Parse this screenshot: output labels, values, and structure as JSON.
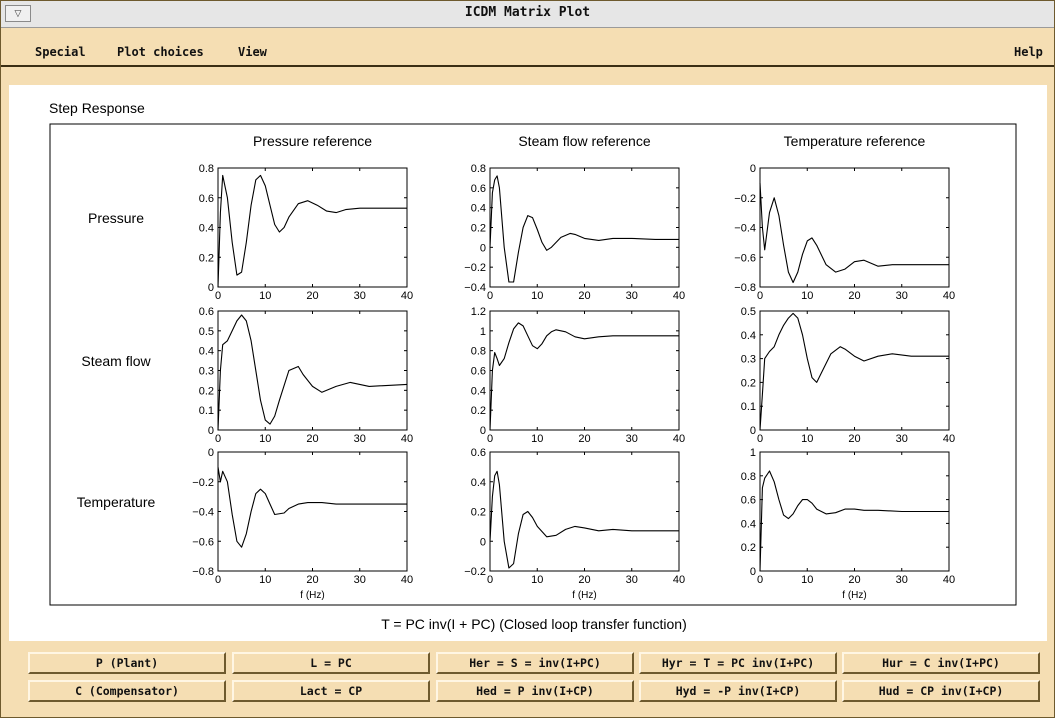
{
  "window": {
    "title": "ICDM Matrix Plot"
  },
  "menu": {
    "special": "Special",
    "plot_choices": "Plot choices",
    "view": "View",
    "help": "Help"
  },
  "figure": {
    "panel_title": "Step Response",
    "caption": "T = PC inv(I + PC)   (Closed loop transfer function)",
    "column_titles": [
      "Pressure reference",
      "Steam flow reference",
      "Temperature reference"
    ],
    "row_labels": [
      "Pressure",
      "Steam flow",
      "Temperature"
    ],
    "xlabel": "f (Hz)"
  },
  "chart_data": {
    "type": "line",
    "title": "Step Response",
    "xlabel": "f (Hz)",
    "xlim": [
      0,
      40
    ],
    "x_ticks": [
      0,
      10,
      20,
      30,
      40
    ],
    "subplots": [
      {
        "row": "Pressure",
        "col": "Pressure reference",
        "ylim": [
          0,
          0.8
        ],
        "y_ticks": [
          0,
          0.2,
          0.4,
          0.6,
          0.8
        ],
        "x": [
          0,
          0.5,
          1,
          2,
          3,
          4,
          5,
          6,
          7,
          8,
          9,
          10,
          11,
          12,
          13,
          14,
          15,
          17,
          19,
          21,
          23,
          25,
          27,
          30,
          35,
          40
        ],
        "y": [
          0,
          0.5,
          0.75,
          0.6,
          0.3,
          0.08,
          0.1,
          0.3,
          0.55,
          0.72,
          0.75,
          0.68,
          0.55,
          0.42,
          0.37,
          0.4,
          0.47,
          0.56,
          0.58,
          0.55,
          0.51,
          0.5,
          0.52,
          0.53,
          0.53,
          0.53
        ]
      },
      {
        "row": "Pressure",
        "col": "Steam flow reference",
        "ylim": [
          -0.4,
          0.8
        ],
        "y_ticks": [
          -0.4,
          -0.2,
          0,
          0.2,
          0.4,
          0.6,
          0.8
        ],
        "x": [
          0,
          0.5,
          1,
          1.5,
          2,
          3,
          4,
          5,
          6,
          7,
          8,
          9,
          10,
          11,
          12,
          13,
          15,
          17,
          18,
          20,
          23,
          26,
          30,
          35,
          40
        ],
        "y": [
          0,
          0.55,
          0.68,
          0.72,
          0.6,
          0.0,
          -0.35,
          -0.35,
          -0.05,
          0.2,
          0.32,
          0.3,
          0.18,
          0.05,
          -0.03,
          0.0,
          0.1,
          0.14,
          0.13,
          0.09,
          0.07,
          0.09,
          0.09,
          0.08,
          0.08
        ]
      },
      {
        "row": "Pressure",
        "col": "Temperature reference",
        "ylim": [
          -0.8,
          0
        ],
        "y_ticks": [
          -0.8,
          -0.6,
          -0.4,
          -0.2,
          0
        ],
        "x": [
          0,
          0.5,
          1,
          2,
          3,
          4,
          5,
          6,
          7,
          8,
          9,
          10,
          11,
          12,
          14,
          16,
          18,
          20,
          22,
          25,
          28,
          32,
          40
        ],
        "y": [
          -0.1,
          -0.4,
          -0.55,
          -0.3,
          -0.2,
          -0.32,
          -0.52,
          -0.7,
          -0.77,
          -0.7,
          -0.58,
          -0.49,
          -0.47,
          -0.52,
          -0.65,
          -0.7,
          -0.68,
          -0.63,
          -0.62,
          -0.66,
          -0.65,
          -0.65,
          -0.65
        ]
      },
      {
        "row": "Steam flow",
        "col": "Pressure reference",
        "ylim": [
          0,
          0.6
        ],
        "y_ticks": [
          0,
          0.1,
          0.2,
          0.3,
          0.4,
          0.5,
          0.6
        ],
        "x": [
          0,
          0.5,
          1,
          2,
          3,
          4,
          5,
          6,
          7,
          8,
          9,
          10,
          11,
          12,
          13,
          15,
          17,
          18,
          20,
          22,
          25,
          28,
          32,
          40
        ],
        "y": [
          0,
          0.3,
          0.43,
          0.45,
          0.5,
          0.55,
          0.58,
          0.55,
          0.45,
          0.3,
          0.15,
          0.05,
          0.03,
          0.07,
          0.15,
          0.3,
          0.32,
          0.28,
          0.22,
          0.19,
          0.22,
          0.24,
          0.22,
          0.23
        ]
      },
      {
        "row": "Steam flow",
        "col": "Steam flow reference",
        "ylim": [
          0,
          1.2
        ],
        "y_ticks": [
          0,
          0.2,
          0.4,
          0.6,
          0.8,
          1,
          1.2
        ],
        "x": [
          0,
          0.5,
          1,
          1.5,
          2,
          3,
          4,
          5,
          6,
          7,
          8,
          9,
          10,
          11,
          12,
          13,
          14,
          16,
          18,
          20,
          23,
          26,
          30,
          40
        ],
        "y": [
          0,
          0.6,
          0.78,
          0.72,
          0.65,
          0.72,
          0.88,
          1.02,
          1.08,
          1.05,
          0.95,
          0.85,
          0.82,
          0.87,
          0.95,
          0.99,
          1.01,
          0.99,
          0.94,
          0.92,
          0.94,
          0.95,
          0.95,
          0.95
        ]
      },
      {
        "row": "Steam flow",
        "col": "Temperature reference",
        "ylim": [
          0,
          0.5
        ],
        "y_ticks": [
          0,
          0.1,
          0.2,
          0.3,
          0.4,
          0.5
        ],
        "x": [
          0,
          0.5,
          1,
          2,
          3,
          4,
          5,
          6,
          7,
          8,
          9,
          10,
          11,
          12,
          13,
          15,
          17,
          18,
          20,
          22,
          25,
          28,
          32,
          40
        ],
        "y": [
          0,
          0.15,
          0.3,
          0.33,
          0.35,
          0.4,
          0.44,
          0.47,
          0.49,
          0.47,
          0.4,
          0.3,
          0.22,
          0.2,
          0.24,
          0.32,
          0.35,
          0.34,
          0.31,
          0.29,
          0.31,
          0.32,
          0.31,
          0.31
        ]
      },
      {
        "row": "Temperature",
        "col": "Pressure reference",
        "ylim": [
          -0.8,
          0
        ],
        "y_ticks": [
          -0.8,
          -0.6,
          -0.4,
          -0.2,
          0
        ],
        "x": [
          0,
          0.5,
          1,
          2,
          3,
          4,
          5,
          6,
          7,
          8,
          9,
          10,
          11,
          12,
          14,
          15,
          17,
          19,
          22,
          25,
          30,
          40
        ],
        "y": [
          -0.1,
          -0.2,
          -0.13,
          -0.2,
          -0.42,
          -0.6,
          -0.64,
          -0.55,
          -0.4,
          -0.28,
          -0.25,
          -0.28,
          -0.35,
          -0.42,
          -0.41,
          -0.38,
          -0.35,
          -0.34,
          -0.34,
          -0.35,
          -0.35,
          -0.35
        ]
      },
      {
        "row": "Temperature",
        "col": "Steam flow reference",
        "ylim": [
          -0.2,
          0.6
        ],
        "y_ticks": [
          -0.2,
          0,
          0.2,
          0.4,
          0.6
        ],
        "x": [
          0,
          0.5,
          1,
          1.5,
          2,
          3,
          4,
          5,
          6,
          7,
          8,
          9,
          10,
          12,
          14,
          16,
          18,
          20,
          23,
          26,
          30,
          40
        ],
        "y": [
          0,
          0.3,
          0.44,
          0.47,
          0.38,
          0.0,
          -0.18,
          -0.15,
          0.05,
          0.18,
          0.2,
          0.16,
          0.1,
          0.03,
          0.04,
          0.08,
          0.1,
          0.09,
          0.07,
          0.08,
          0.07,
          0.07
        ]
      },
      {
        "row": "Temperature",
        "col": "Temperature reference",
        "ylim": [
          0,
          1
        ],
        "y_ticks": [
          0,
          0.2,
          0.4,
          0.6,
          0.8,
          1
        ],
        "x": [
          0,
          0.5,
          1,
          2,
          3,
          4,
          5,
          6,
          7,
          8,
          9,
          10,
          11,
          12,
          14,
          16,
          18,
          20,
          22,
          25,
          30,
          40
        ],
        "y": [
          0,
          0.7,
          0.78,
          0.84,
          0.75,
          0.6,
          0.47,
          0.44,
          0.48,
          0.55,
          0.6,
          0.6,
          0.57,
          0.52,
          0.48,
          0.49,
          0.52,
          0.52,
          0.51,
          0.51,
          0.5,
          0.5
        ]
      }
    ]
  },
  "buttons": {
    "row1": [
      "P (Plant)",
      "L = PC",
      "Her = S = inv(I+PC)",
      "Hyr = T = PC inv(I+PC)",
      "Hur = C inv(I+PC)"
    ],
    "row2": [
      "C (Compensator)",
      "Lact = CP",
      "Hed = P inv(I+CP)",
      "Hyd = -P inv(I+CP)",
      "Hud = CP inv(I+CP)"
    ]
  },
  "colors": {
    "window_bg": "#f5deb3",
    "plot_bg": "#ffffff",
    "line": "#000000"
  }
}
